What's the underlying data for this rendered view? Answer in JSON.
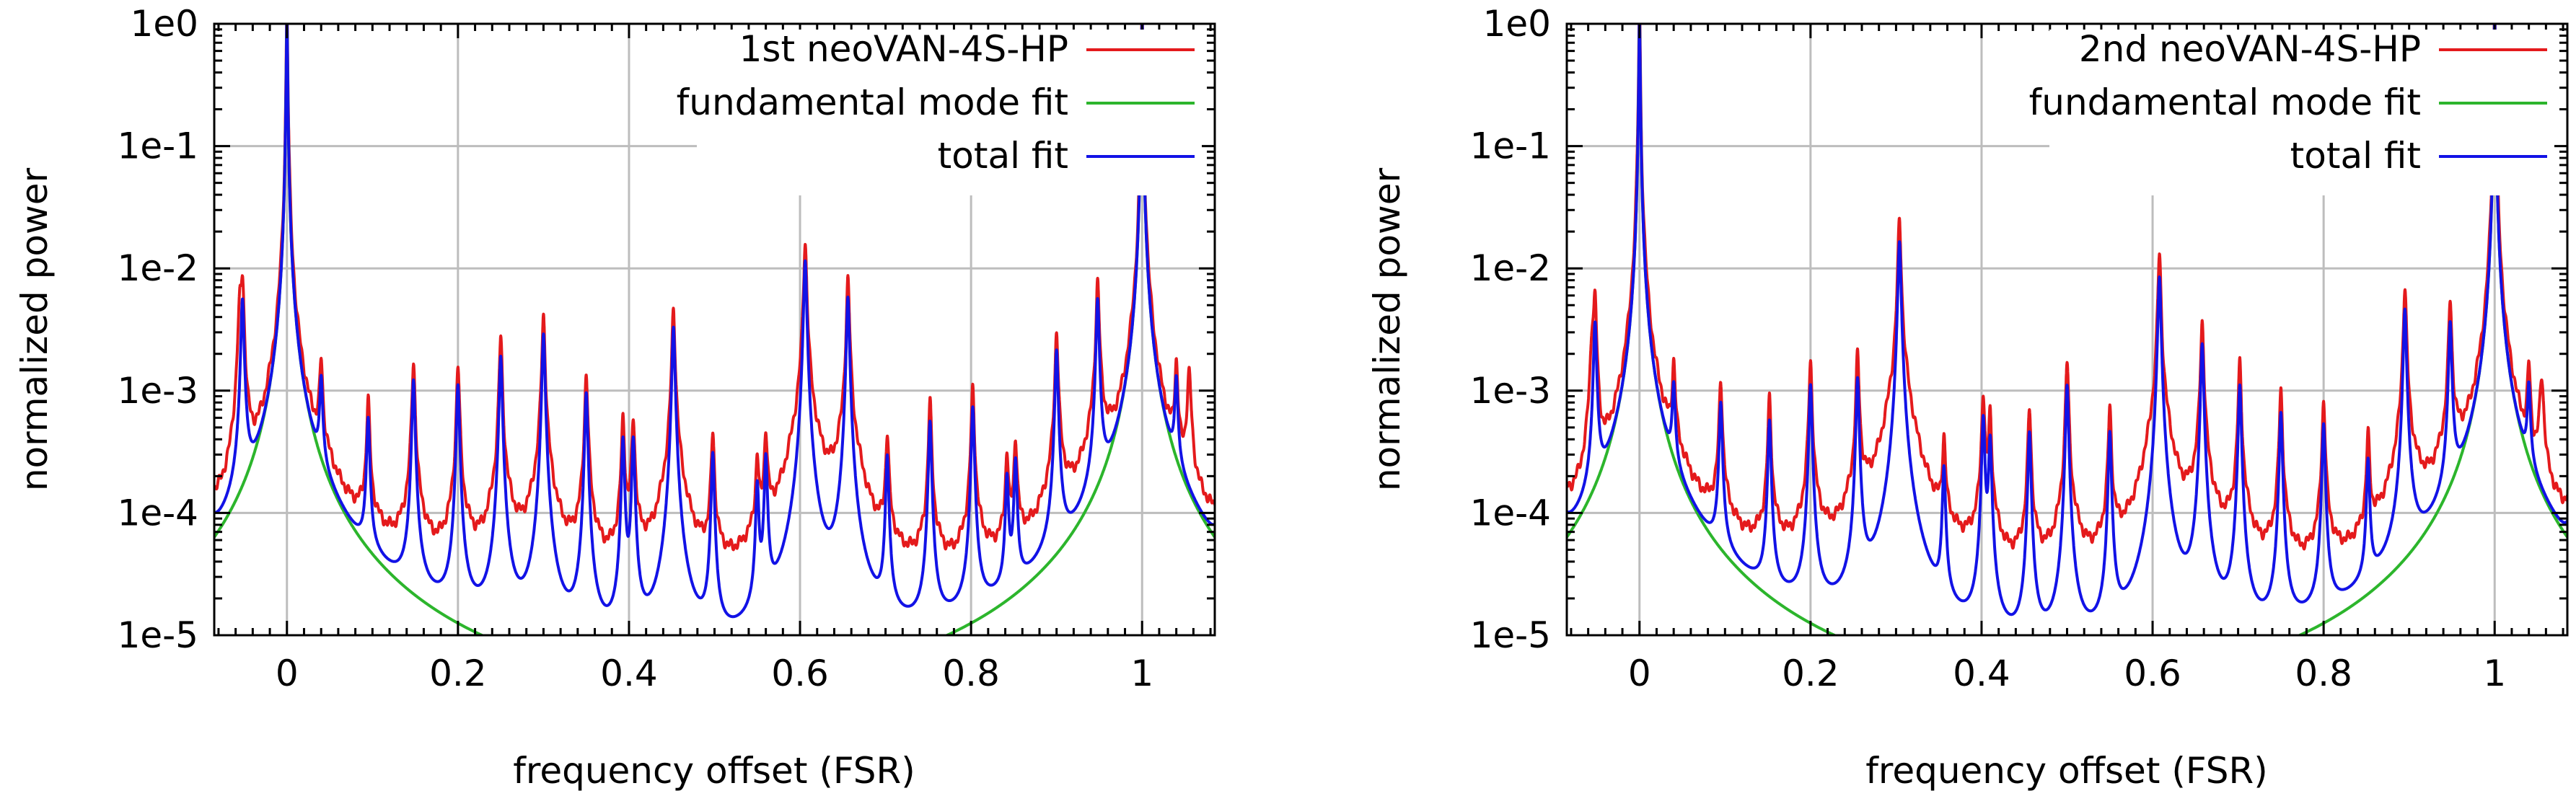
{
  "chart_data": [
    {
      "type": "line",
      "panel": "left",
      "xlabel": "frequency offset (FSR)",
      "ylabel": "normalized power",
      "xlim": [
        -0.085,
        1.085
      ],
      "ylim_log10": [
        -5,
        0
      ],
      "x_ticks": [
        0,
        0.2,
        0.4,
        0.6,
        0.8,
        1
      ],
      "x_tick_labels": [
        "0",
        "0.2",
        "0.4",
        "0.6",
        "0.8",
        "1"
      ],
      "y_tick_labels": [
        "1e0",
        "1e-1",
        "1e-2",
        "1e-3",
        "1e-4",
        "1e-5"
      ],
      "y_tick_log10": [
        0,
        -1,
        -2,
        -3,
        -4,
        -5
      ],
      "legend": {
        "placement": "top-right"
      },
      "series": [
        {
          "name": "1st neoVAN-4S-HP",
          "color": "#e41a1c",
          "role": "measured"
        },
        {
          "name": "fundamental mode fit",
          "color": "#2cb52c",
          "role": "fundamental"
        },
        {
          "name": "total fit",
          "color": "#1212e6",
          "role": "total"
        }
      ],
      "model": {
        "fundamental_floor": 1.5e-05,
        "main_peak_height": 1.0,
        "extra_red_peaks": [
          [
            -0.055,
            0.0045
          ],
          [
            1.055,
            0.0012
          ]
        ],
        "red_excess": 0.35,
        "peaks": [
          [
            0.04,
            0.00105
          ],
          [
            0.095,
            0.00055
          ],
          [
            0.148,
            0.0012
          ],
          [
            0.2,
            0.0011
          ],
          [
            0.25,
            0.0019
          ],
          [
            0.3,
            0.0029
          ],
          [
            0.35,
            0.00095
          ],
          [
            0.393,
            0.0004
          ],
          [
            0.405,
            0.0004
          ],
          [
            0.452,
            0.0033
          ],
          [
            0.498,
            0.0003
          ],
          [
            0.55,
            0.00016
          ],
          [
            0.56,
            0.00028
          ],
          [
            0.606,
            0.0115
          ],
          [
            0.656,
            0.0058
          ],
          [
            0.702,
            0.00028
          ],
          [
            0.752,
            0.00055
          ],
          [
            0.802,
            0.00072
          ],
          [
            0.842,
            0.00018
          ],
          [
            0.852,
            0.00025
          ],
          [
            0.9,
            0.0021
          ],
          [
            0.948,
            0.0055
          ]
        ]
      }
    },
    {
      "type": "line",
      "panel": "right",
      "xlabel": "frequency offset (FSR)",
      "ylabel": "normalized power",
      "xlim": [
        -0.085,
        1.085
      ],
      "ylim_log10": [
        -5,
        0
      ],
      "x_ticks": [
        0,
        0.2,
        0.4,
        0.6,
        0.8,
        1
      ],
      "x_tick_labels": [
        "0",
        "0.2",
        "0.4",
        "0.6",
        "0.8",
        "1"
      ],
      "y_tick_labels": [
        "1e0",
        "1e-1",
        "1e-2",
        "1e-3",
        "1e-4",
        "1e-5"
      ],
      "y_tick_log10": [
        0,
        -1,
        -2,
        -3,
        -4,
        -5
      ],
      "legend": {
        "placement": "top-right"
      },
      "series": [
        {
          "name": "2nd neoVAN-4S-HP",
          "color": "#e41a1c",
          "role": "measured"
        },
        {
          "name": "fundamental mode fit",
          "color": "#2cb52c",
          "role": "fundamental"
        },
        {
          "name": "total fit",
          "color": "#1212e6",
          "role": "total"
        }
      ],
      "model": {
        "fundamental_floor": 1.5e-05,
        "main_peak_height": 1.0,
        "extra_red_peaks": [
          [
            -0.055,
            0.0026
          ],
          [
            1.055,
            0.0011
          ]
        ],
        "red_excess": 0.45,
        "peaks": [
          [
            0.04,
            0.0009
          ],
          [
            0.095,
            0.00075
          ],
          [
            0.152,
            0.00055
          ],
          [
            0.2,
            0.0011
          ],
          [
            0.255,
            0.00125
          ],
          [
            0.304,
            0.0165
          ],
          [
            0.356,
            0.00022
          ],
          [
            0.402,
            0.0006
          ],
          [
            0.41,
            0.0004
          ],
          [
            0.456,
            0.00045
          ],
          [
            0.5,
            0.0011
          ],
          [
            0.55,
            0.00045
          ],
          [
            0.608,
            0.0085
          ],
          [
            0.658,
            0.0024
          ],
          [
            0.702,
            0.0011
          ],
          [
            0.75,
            0.00065
          ],
          [
            0.8,
            0.00052
          ],
          [
            0.852,
            0.00025
          ],
          [
            0.895,
            0.0046
          ],
          [
            0.948,
            0.0035
          ]
        ]
      }
    }
  ]
}
